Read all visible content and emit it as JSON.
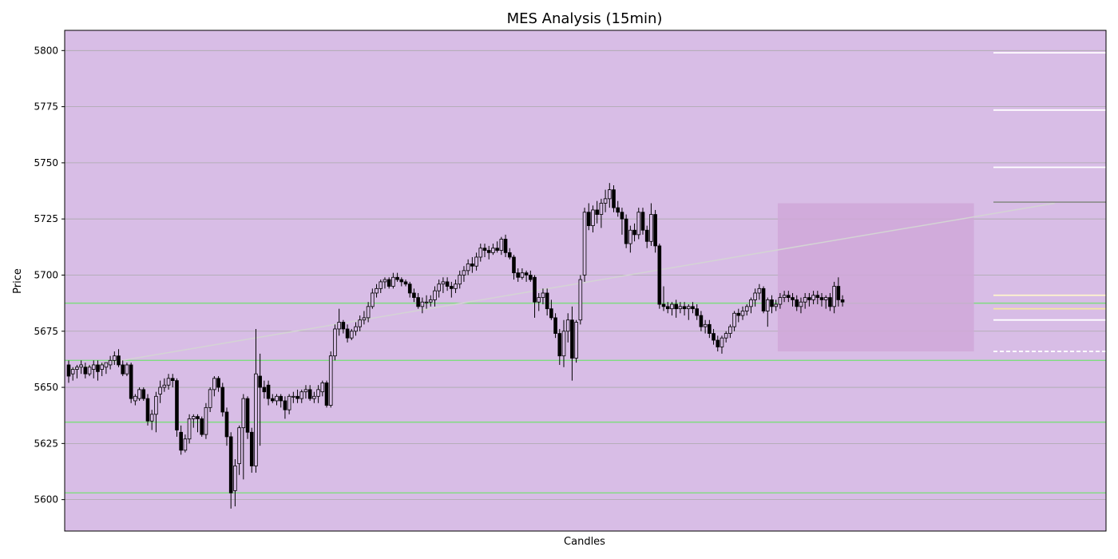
{
  "chart_data": {
    "type": "candlestick",
    "title": "MES Analysis (15min)",
    "xlabel": "Candles",
    "ylabel": "Price",
    "ylim": [
      5586,
      5809
    ],
    "yticks": [
      5600,
      5625,
      5650,
      5675,
      5700,
      5725,
      5750,
      5775,
      5800
    ],
    "grid": "horizontal",
    "colors": {
      "background": "#d8bde6",
      "grid": "#aaaaaa",
      "candle_up": "#d8bde6",
      "candle_down": "#000000",
      "candle_edge": "#000000",
      "support_lines": "#7fdc7f",
      "trend_line": "#d4d4d4",
      "zone": "#d0a8d8"
    },
    "candles": [
      [
        5660,
        5662,
        5652,
        5655
      ],
      [
        5656,
        5659,
        5653,
        5658
      ],
      [
        5658,
        5660,
        5654,
        5659
      ],
      [
        5659,
        5662,
        5656,
        5660
      ],
      [
        5659,
        5661,
        5654,
        5656
      ],
      [
        5656,
        5660,
        5655,
        5659
      ],
      [
        5658,
        5662,
        5654,
        5660
      ],
      [
        5660,
        5662,
        5653,
        5657
      ],
      [
        5658,
        5661,
        5655,
        5660
      ],
      [
        5659,
        5661,
        5656,
        5661
      ],
      [
        5660,
        5664,
        5658,
        5662
      ],
      [
        5662,
        5666,
        5660,
        5664
      ],
      [
        5664,
        5667,
        5659,
        5660
      ],
      [
        5660,
        5662,
        5655,
        5656
      ],
      [
        5656,
        5661,
        5655,
        5660
      ],
      [
        5660,
        5661,
        5643,
        5645
      ],
      [
        5644,
        5647,
        5642,
        5646
      ],
      [
        5645,
        5650,
        5644,
        5649
      ],
      [
        5649,
        5650,
        5644,
        5645
      ],
      [
        5645,
        5647,
        5633,
        5635
      ],
      [
        5635,
        5640,
        5631,
        5638
      ],
      [
        5638,
        5648,
        5630,
        5646
      ],
      [
        5647,
        5653,
        5643,
        5650
      ],
      [
        5650,
        5654,
        5648,
        5651
      ],
      [
        5651,
        5656,
        5649,
        5654
      ],
      [
        5654,
        5656,
        5650,
        5653
      ],
      [
        5653,
        5654,
        5628,
        5631
      ],
      [
        5630,
        5633,
        5620,
        5622
      ],
      [
        5622,
        5629,
        5621,
        5627
      ],
      [
        5627,
        5638,
        5625,
        5636
      ],
      [
        5636,
        5638,
        5632,
        5637
      ],
      [
        5637,
        5638,
        5630,
        5636
      ],
      [
        5636,
        5637,
        5628,
        5629
      ],
      [
        5629,
        5643,
        5627,
        5641
      ],
      [
        5641,
        5650,
        5639,
        5649
      ],
      [
        5649,
        5655,
        5646,
        5654
      ],
      [
        5654,
        5655,
        5648,
        5650
      ],
      [
        5650,
        5652,
        5637,
        5639
      ],
      [
        5639,
        5641,
        5624,
        5628
      ],
      [
        5628,
        5630,
        5596,
        5603
      ],
      [
        5604,
        5618,
        5597,
        5615
      ],
      [
        5616,
        5633,
        5611,
        5632
      ],
      [
        5632,
        5647,
        5609,
        5645
      ],
      [
        5645,
        5646,
        5627,
        5630
      ],
      [
        5630,
        5632,
        5612,
        5615
      ],
      [
        5615,
        5676,
        5612,
        5656
      ],
      [
        5655,
        5665,
        5624,
        5650
      ],
      [
        5650,
        5653,
        5645,
        5648
      ],
      [
        5651,
        5653,
        5642,
        5645
      ],
      [
        5645,
        5647,
        5643,
        5644
      ],
      [
        5644,
        5647,
        5642,
        5646
      ],
      [
        5646,
        5647,
        5641,
        5644
      ],
      [
        5644,
        5646,
        5636,
        5640
      ],
      [
        5640,
        5647,
        5638,
        5646
      ],
      [
        5646,
        5648,
        5643,
        5646
      ],
      [
        5646,
        5649,
        5643,
        5645
      ],
      [
        5645,
        5649,
        5643,
        5648
      ],
      [
        5648,
        5651,
        5645,
        5649
      ],
      [
        5649,
        5651,
        5644,
        5645
      ],
      [
        5645,
        5648,
        5643,
        5646
      ],
      [
        5646,
        5651,
        5643,
        5649
      ],
      [
        5648,
        5653,
        5646,
        5652
      ],
      [
        5652,
        5653,
        5641,
        5642
      ],
      [
        5642,
        5666,
        5641,
        5664
      ],
      [
        5664,
        5678,
        5662,
        5676
      ],
      [
        5676,
        5685,
        5673,
        5679
      ],
      [
        5679,
        5680,
        5674,
        5676
      ],
      [
        5676,
        5678,
        5670,
        5672
      ],
      [
        5672,
        5676,
        5671,
        5675
      ],
      [
        5675,
        5679,
        5673,
        5677
      ],
      [
        5677,
        5682,
        5675,
        5680
      ],
      [
        5680,
        5684,
        5678,
        5681
      ],
      [
        5681,
        5688,
        5679,
        5686
      ],
      [
        5686,
        5694,
        5685,
        5692
      ],
      [
        5692,
        5696,
        5690,
        5694
      ],
      [
        5694,
        5698,
        5692,
        5697
      ],
      [
        5697,
        5699,
        5694,
        5698
      ],
      [
        5698,
        5699,
        5694,
        5695
      ],
      [
        5695,
        5701,
        5694,
        5699
      ],
      [
        5699,
        5701,
        5697,
        5698
      ],
      [
        5698,
        5699,
        5695,
        5697
      ],
      [
        5697,
        5698,
        5695,
        5696
      ],
      [
        5696,
        5697,
        5690,
        5692
      ],
      [
        5692,
        5694,
        5688,
        5690
      ],
      [
        5690,
        5692,
        5685,
        5686
      ],
      [
        5686,
        5690,
        5683,
        5688
      ],
      [
        5688,
        5691,
        5685,
        5688
      ],
      [
        5688,
        5691,
        5686,
        5689
      ],
      [
        5689,
        5695,
        5686,
        5693
      ],
      [
        5693,
        5698,
        5690,
        5696
      ],
      [
        5696,
        5699,
        5692,
        5697
      ],
      [
        5697,
        5699,
        5693,
        5695
      ],
      [
        5695,
        5697,
        5690,
        5694
      ],
      [
        5694,
        5698,
        5692,
        5696
      ],
      [
        5696,
        5702,
        5694,
        5700
      ],
      [
        5700,
        5704,
        5697,
        5702
      ],
      [
        5702,
        5707,
        5700,
        5705
      ],
      [
        5705,
        5708,
        5701,
        5704
      ],
      [
        5704,
        5710,
        5702,
        5708
      ],
      [
        5708,
        5714,
        5706,
        5712
      ],
      [
        5712,
        5714,
        5708,
        5711
      ],
      [
        5711,
        5713,
        5707,
        5710
      ],
      [
        5710,
        5714,
        5709,
        5712
      ],
      [
        5712,
        5715,
        5710,
        5711
      ],
      [
        5711,
        5717,
        5709,
        5716
      ],
      [
        5716,
        5718,
        5708,
        5710
      ],
      [
        5710,
        5712,
        5707,
        5708
      ],
      [
        5708,
        5709,
        5698,
        5701
      ],
      [
        5701,
        5703,
        5697,
        5699
      ],
      [
        5699,
        5703,
        5698,
        5701
      ],
      [
        5701,
        5702,
        5697,
        5700
      ],
      [
        5700,
        5702,
        5697,
        5698
      ],
      [
        5699,
        5700,
        5681,
        5688
      ],
      [
        5688,
        5692,
        5684,
        5690
      ],
      [
        5690,
        5694,
        5687,
        5692
      ],
      [
        5692,
        5694,
        5682,
        5685
      ],
      [
        5685,
        5689,
        5680,
        5681
      ],
      [
        5681,
        5683,
        5672,
        5674
      ],
      [
        5674,
        5676,
        5660,
        5664
      ],
      [
        5664,
        5680,
        5659,
        5675
      ],
      [
        5675,
        5683,
        5670,
        5680
      ],
      [
        5680,
        5686,
        5653,
        5663
      ],
      [
        5663,
        5680,
        5661,
        5679
      ],
      [
        5680,
        5700,
        5678,
        5698
      ],
      [
        5700,
        5730,
        5697,
        5728
      ],
      [
        5728,
        5732,
        5720,
        5722
      ],
      [
        5722,
        5731,
        5719,
        5729
      ],
      [
        5729,
        5733,
        5723,
        5727
      ],
      [
        5727,
        5734,
        5721,
        5732
      ],
      [
        5732,
        5738,
        5728,
        5734
      ],
      [
        5734,
        5741,
        5730,
        5738
      ],
      [
        5738,
        5740,
        5728,
        5730
      ],
      [
        5730,
        5733,
        5726,
        5728
      ],
      [
        5728,
        5730,
        5718,
        5725
      ],
      [
        5725,
        5727,
        5712,
        5714
      ],
      [
        5714,
        5722,
        5710,
        5720
      ],
      [
        5720,
        5723,
        5715,
        5718
      ],
      [
        5718,
        5730,
        5716,
        5728
      ],
      [
        5728,
        5730,
        5718,
        5720
      ],
      [
        5720,
        5722,
        5712,
        5715
      ],
      [
        5715,
        5732,
        5713,
        5727
      ],
      [
        5727,
        5729,
        5710,
        5713
      ],
      [
        5713,
        5714,
        5685,
        5687
      ],
      [
        5687,
        5695,
        5684,
        5686
      ],
      [
        5686,
        5688,
        5683,
        5685
      ],
      [
        5685,
        5688,
        5682,
        5687
      ],
      [
        5687,
        5689,
        5681,
        5685
      ],
      [
        5685,
        5688,
        5683,
        5686
      ],
      [
        5686,
        5688,
        5682,
        5685
      ],
      [
        5685,
        5687,
        5680,
        5686
      ],
      [
        5686,
        5688,
        5683,
        5685
      ],
      [
        5685,
        5687,
        5680,
        5682
      ],
      [
        5682,
        5684,
        5675,
        5677
      ],
      [
        5677,
        5680,
        5674,
        5678
      ],
      [
        5678,
        5680,
        5672,
        5674
      ],
      [
        5674,
        5676,
        5669,
        5671
      ],
      [
        5671,
        5673,
        5666,
        5668
      ],
      [
        5668,
        5673,
        5665,
        5672
      ],
      [
        5672,
        5675,
        5670,
        5674
      ],
      [
        5674,
        5678,
        5672,
        5677
      ],
      [
        5677,
        5684,
        5675,
        5683
      ],
      [
        5683,
        5685,
        5679,
        5682
      ],
      [
        5682,
        5686,
        5680,
        5684
      ],
      [
        5684,
        5687,
        5682,
        5686
      ],
      [
        5686,
        5690,
        5683,
        5689
      ],
      [
        5689,
        5694,
        5686,
        5692
      ],
      [
        5692,
        5696,
        5689,
        5694
      ],
      [
        5694,
        5695,
        5683,
        5684
      ],
      [
        5684,
        5690,
        5677,
        5689
      ],
      [
        5689,
        5691,
        5683,
        5686
      ],
      [
        5686,
        5689,
        5684,
        5687
      ],
      [
        5687,
        5692,
        5685,
        5690
      ],
      [
        5690,
        5693,
        5688,
        5691
      ],
      [
        5691,
        5693,
        5688,
        5690
      ],
      [
        5690,
        5692,
        5686,
        5689
      ],
      [
        5689,
        5691,
        5684,
        5686
      ],
      [
        5686,
        5690,
        5683,
        5688
      ],
      [
        5688,
        5692,
        5685,
        5690
      ],
      [
        5690,
        5692,
        5686,
        5689
      ],
      [
        5689,
        5693,
        5687,
        5691
      ],
      [
        5691,
        5693,
        5687,
        5690
      ],
      [
        5690,
        5692,
        5686,
        5689
      ],
      [
        5689,
        5691,
        5685,
        5690
      ],
      [
        5690,
        5692,
        5684,
        5686
      ],
      [
        5686,
        5697,
        5683,
        5695
      ],
      [
        5695,
        5699,
        5686,
        5689
      ],
      [
        5689,
        5691,
        5686,
        5688
      ]
    ],
    "support_lines": [
      5687.5,
      5662,
      5634.5,
      5603
    ],
    "trend_line": {
      "from": {
        "index": 0,
        "price": 5658
      },
      "to": {
        "index": 237,
        "price": 5732
      }
    },
    "zone": {
      "from_index": 171,
      "to_index": 217,
      "top": 5732,
      "bottom": 5666
    },
    "right_levels": [
      {
        "price": 5799,
        "color": "#ffffff",
        "dashed": false
      },
      {
        "price": 5773.5,
        "color": "#ffffff",
        "dashed": false
      },
      {
        "price": 5748,
        "color": "#ffffff",
        "dashed": false
      },
      {
        "price": 5732.5,
        "color": "#909090",
        "dashed": false
      },
      {
        "price": 5691,
        "color": "#fff6cc",
        "dashed": false
      },
      {
        "price": 5685,
        "color": "#f5e6a0",
        "dashed": false
      },
      {
        "price": 5680,
        "color": "#ffffff",
        "dashed": false
      },
      {
        "price": 5666,
        "color": "#ffffff",
        "dashed": true
      }
    ]
  }
}
